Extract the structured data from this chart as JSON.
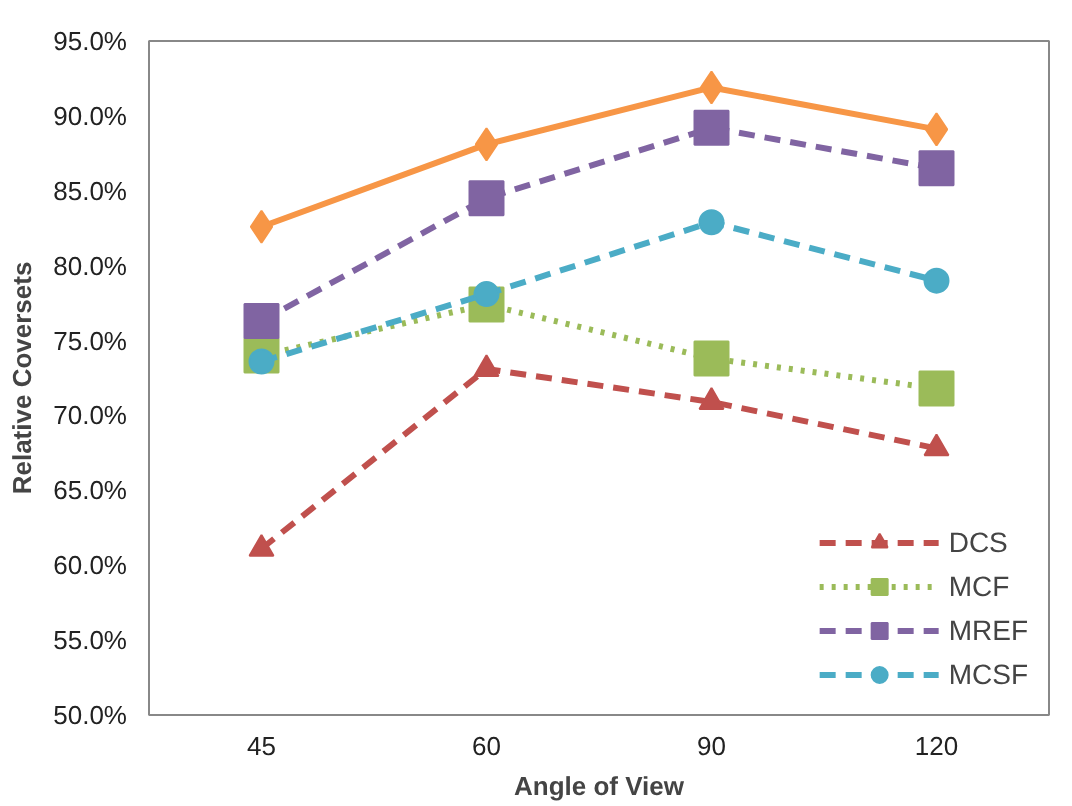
{
  "chart_data": {
    "type": "line",
    "xlabel": "Angle of View",
    "ylabel": "Relative Coversets",
    "categories": [
      "45",
      "60",
      "90",
      "120"
    ],
    "ylim": [
      50,
      95
    ],
    "yticks": [
      {
        "value": 50,
        "label": "50.0%"
      },
      {
        "value": 55,
        "label": "55.0%"
      },
      {
        "value": 60,
        "label": "60.0%"
      },
      {
        "value": 65,
        "label": "65.0%"
      },
      {
        "value": 70,
        "label": "70.0%"
      },
      {
        "value": 75,
        "label": "75.0%"
      },
      {
        "value": 80,
        "label": "80.0%"
      },
      {
        "value": 85,
        "label": "85.0%"
      },
      {
        "value": 90,
        "label": "90.0%"
      },
      {
        "value": 95,
        "label": "95.0%"
      }
    ],
    "grid": false,
    "legend": "bottom right",
    "series": [
      {
        "color": "#f79646",
        "marker": "diamond",
        "line_style": "solid",
        "values": [
          82.6,
          88.1,
          91.9,
          89.1
        ]
      },
      {
        "name": "DCS",
        "color": "#c0504d",
        "marker": "triangle",
        "line_style": "dashed",
        "values": [
          61.1,
          73.1,
          70.9,
          67.8
        ]
      },
      {
        "name": "MCF",
        "color": "#9bbb59",
        "marker": "square",
        "line_style": "dotted",
        "values": [
          74.0,
          77.4,
          73.8,
          71.8
        ]
      },
      {
        "name": "MREF",
        "color": "#8064a2",
        "marker": "square",
        "line_style": "dashed",
        "values": [
          76.3,
          84.5,
          89.2,
          86.5
        ]
      },
      {
        "name": "MCSF",
        "color": "#4bacc6",
        "marker": "circle",
        "line_style": "dashed",
        "values": [
          73.6,
          78.1,
          82.9,
          79.0
        ]
      }
    ]
  }
}
